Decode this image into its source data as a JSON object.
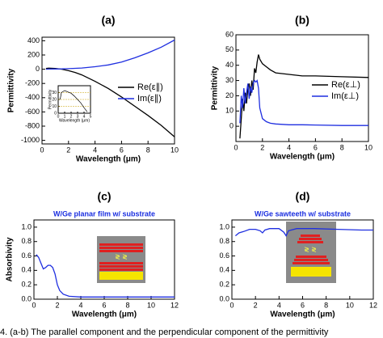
{
  "chart_data": [
    {
      "type": "line",
      "title": "(a)",
      "xlabel": "Wavelength (μm)",
      "ylabel": "Permittivity",
      "xlim": [
        0,
        10
      ],
      "xticks": [
        0,
        2,
        4,
        6,
        8,
        10
      ],
      "ylim": [
        -1050,
        450
      ],
      "yticks": [
        -1000,
        -800,
        -600,
        -400,
        -200,
        0,
        200,
        400
      ],
      "grid": false,
      "legend": "right",
      "x": [
        0.3,
        0.5,
        1,
        1.5,
        2,
        2.5,
        3,
        4,
        5,
        6,
        7,
        8,
        9,
        10
      ],
      "series": [
        {
          "name": "Re(ε∥)",
          "color": "#000000",
          "values": [
            10,
            15,
            10,
            0,
            -20,
            -45,
            -80,
            -170,
            -270,
            -390,
            -520,
            -650,
            -790,
            -950
          ]
        },
        {
          "name": "Im(ε∥)",
          "color": "#1f2fe0",
          "values": [
            0,
            2,
            3,
            5,
            8,
            12,
            17,
            35,
            60,
            100,
            160,
            230,
            310,
            410
          ]
        }
      ],
      "inset": {
        "type": "line",
        "xlabel": "Wavelength (μm)",
        "ylabel": "Permittivity",
        "xlim": [
          0,
          5
        ],
        "xticks": [
          0,
          1,
          2,
          3,
          4,
          5
        ],
        "ylim": [
          0,
          40
        ],
        "yticks": [
          0,
          10,
          20,
          30
        ],
        "x": [
          0.3,
          0.5,
          1,
          1.5,
          2,
          2.5,
          3,
          3.5,
          4,
          4.5
        ],
        "series": [
          {
            "color": "#000000",
            "values": [
              20,
              30,
              33,
              31,
              29,
              25,
              20,
              15,
              8,
              2
            ]
          }
        ]
      }
    },
    {
      "type": "line",
      "title": "(b)",
      "xlabel": "Wavelength (μm)",
      "ylabel": "Permittivity",
      "xlim": [
        0,
        10
      ],
      "xticks": [
        0,
        2,
        4,
        6,
        8,
        10
      ],
      "ylim": [
        -10,
        60
      ],
      "yticks": [
        0,
        10,
        20,
        30,
        40,
        50,
        60
      ],
      "grid": false,
      "legend": "right",
      "x": [
        0.3,
        0.4,
        0.5,
        0.6,
        0.7,
        0.8,
        0.9,
        1.0,
        1.1,
        1.2,
        1.3,
        1.4,
        1.5,
        1.6,
        1.7,
        1.8,
        2.0,
        2.3,
        2.6,
        3,
        4,
        5,
        6,
        8,
        10
      ],
      "series": [
        {
          "name": "Re(ε⊥)",
          "color": "#000000",
          "values": [
            -8,
            5,
            18,
            10,
            22,
            15,
            25,
            28,
            20,
            30,
            24,
            38,
            35,
            42,
            47,
            44,
            41,
            39,
            37,
            35,
            34,
            33,
            33,
            32.5,
            32
          ]
        },
        {
          "name": "Im(ε⊥)",
          "color": "#1f2fe0",
          "values": [
            2,
            20,
            12,
            25,
            15,
            22,
            28,
            18,
            26,
            22,
            28,
            30,
            29,
            30,
            25,
            12,
            5,
            3,
            2,
            1.5,
            1,
            1,
            0.8,
            0.5,
            0.5
          ]
        }
      ]
    },
    {
      "type": "line",
      "title": "(c)",
      "subtitle": "W/Ge planar film w/ substrate",
      "xlabel": "Wavelength (μm)",
      "ylabel": "Absorbivity",
      "xlim": [
        0,
        12
      ],
      "xticks": [
        0,
        2,
        4,
        6,
        8,
        10,
        12
      ],
      "ylim": [
        0,
        1.1
      ],
      "yticks": [
        {
          "value": 0,
          "label": "0.0"
        },
        0.2,
        0.4,
        0.6,
        0.8,
        {
          "value": 1,
          "label": "1.0"
        }
      ],
      "grid": false,
      "x": [
        0.2,
        0.4,
        0.6,
        0.8,
        1.0,
        1.2,
        1.4,
        1.6,
        1.8,
        2.0,
        2.2,
        2.5,
        3,
        4,
        6,
        8,
        10,
        12
      ],
      "series": [
        {
          "color": "#1f2fe0",
          "values": [
            0.62,
            0.58,
            0.5,
            0.42,
            0.44,
            0.47,
            0.47,
            0.44,
            0.35,
            0.2,
            0.12,
            0.07,
            0.04,
            0.03,
            0.03,
            0.03,
            0.03,
            0.03
          ]
        }
      ]
    },
    {
      "type": "line",
      "title": "(d)",
      "subtitle": "W/Ge sawteeth w/ substrate",
      "xlabel": "Wavelength (μm)",
      "xlim": [
        0,
        12
      ],
      "xticks": [
        0,
        2,
        4,
        6,
        8,
        10,
        12
      ],
      "ylim": [
        0,
        1.1
      ],
      "yticks": [
        {
          "value": 0,
          "label": "0.0"
        },
        0.2,
        0.4,
        0.6,
        0.8,
        {
          "value": 1,
          "label": "1.0"
        }
      ],
      "grid": false,
      "x": [
        0.3,
        0.6,
        1,
        1.5,
        2,
        2.4,
        2.6,
        2.8,
        3.2,
        4,
        4.4,
        4.6,
        4.8,
        5.5,
        7,
        9,
        11,
        12
      ],
      "series": [
        {
          "color": "#1f2fe0",
          "values": [
            0.88,
            0.92,
            0.94,
            0.97,
            0.97,
            0.95,
            0.92,
            0.96,
            0.98,
            0.98,
            0.93,
            0.88,
            0.95,
            0.98,
            0.98,
            0.97,
            0.96,
            0.96
          ]
        }
      ]
    }
  ],
  "caption": "4. (a-b) The parallel component and the perpendicular component of the permittivity"
}
